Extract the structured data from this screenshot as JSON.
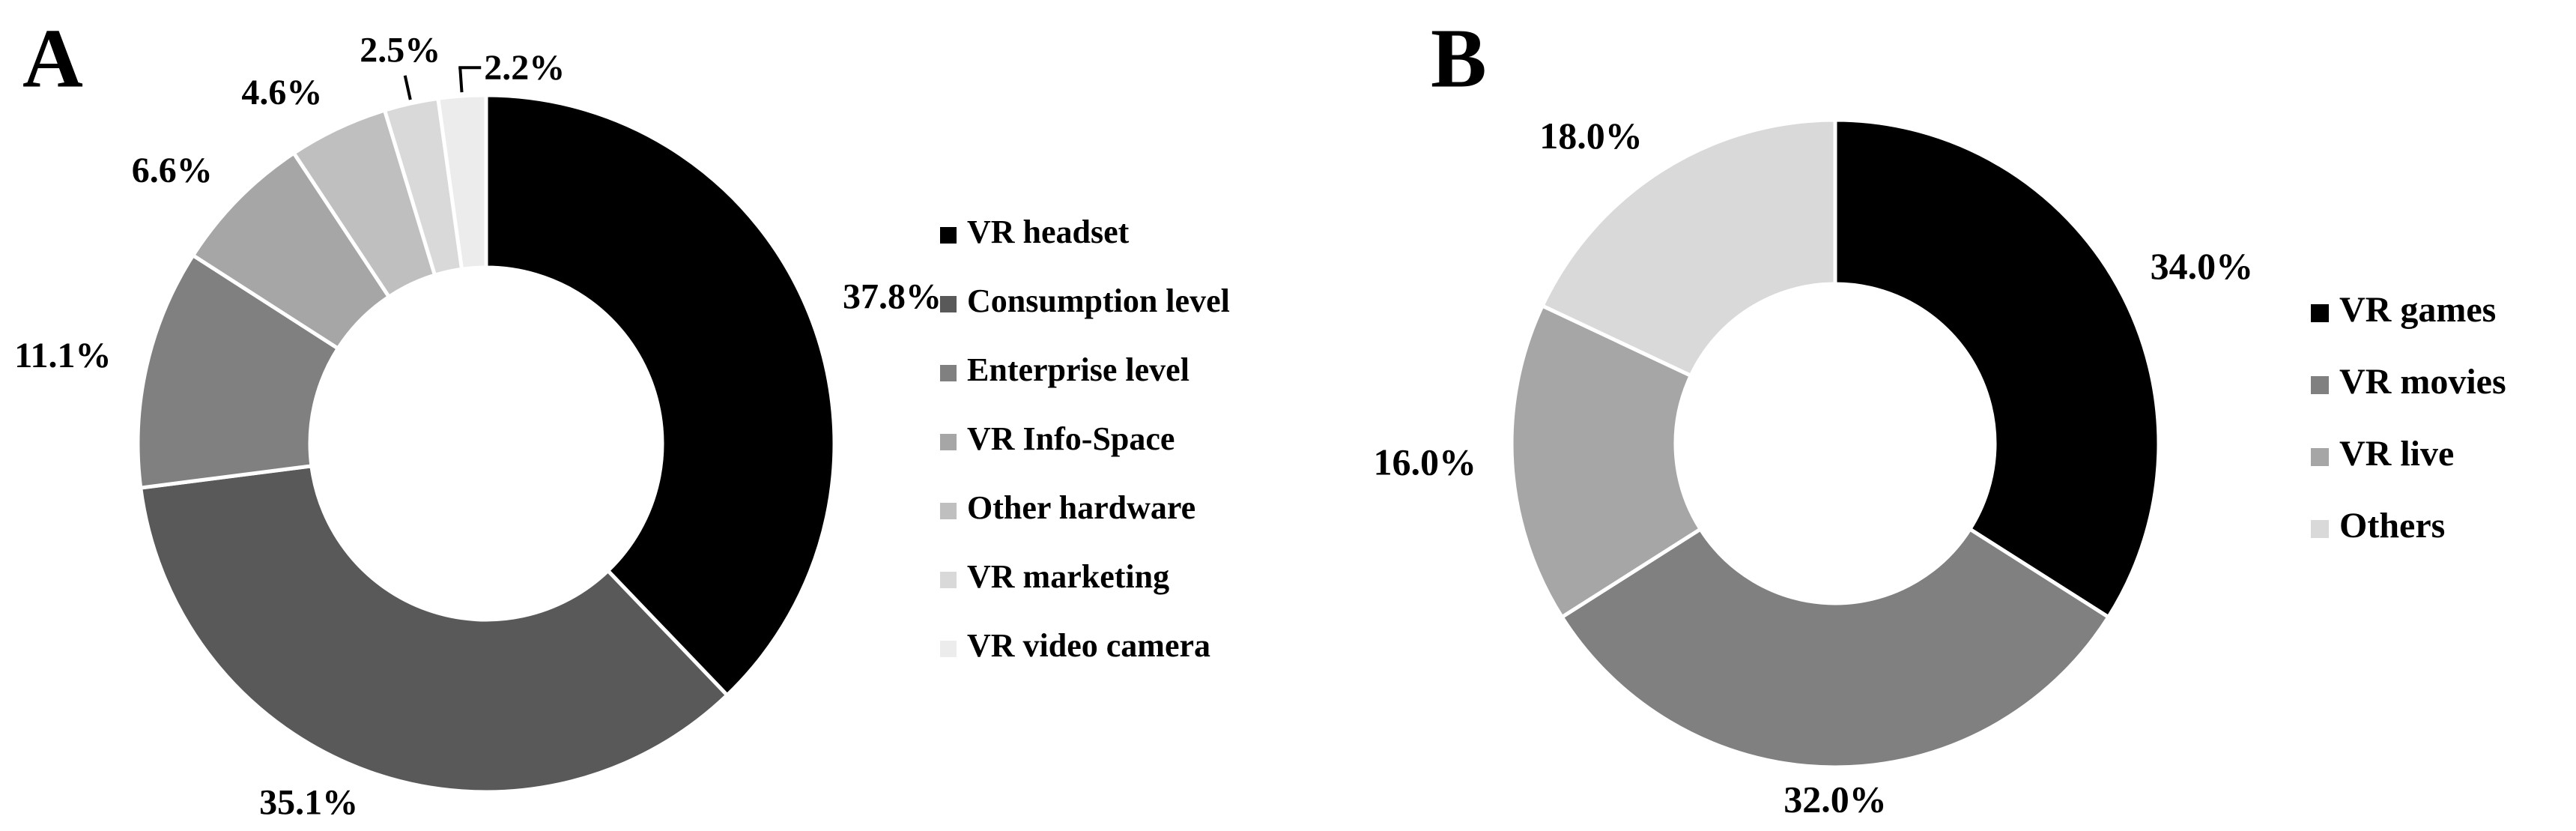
{
  "chart_data": [
    {
      "type": "donut",
      "panel_label": "A",
      "categories": [
        "VR headset",
        "Consumption level",
        "Enterprise level",
        "VR Info-Space",
        "Other hardware",
        "VR marketing",
        "VR video camera"
      ],
      "values": [
        37.8,
        35.1,
        11.1,
        6.6,
        4.6,
        2.5,
        2.2
      ],
      "value_labels": [
        "37.8%",
        "35.1%",
        "11.1%",
        "6.6%",
        "4.6%",
        "2.5%",
        "2.2%"
      ],
      "colors": [
        "#000000",
        "#595959",
        "#808080",
        "#a6a6a6",
        "#bfbfbf",
        "#d9d9d9",
        "#ececec"
      ]
    },
    {
      "type": "donut",
      "panel_label": "B",
      "categories": [
        "VR games",
        "VR movies",
        "VR live",
        "Others"
      ],
      "values": [
        34.0,
        32.0,
        16.0,
        18.0
      ],
      "value_labels": [
        "34.0%",
        "32.0%",
        "16.0%",
        "18.0%"
      ],
      "colors": [
        "#000000",
        "#808080",
        "#a6a6a6",
        "#d9d9d9"
      ]
    }
  ]
}
